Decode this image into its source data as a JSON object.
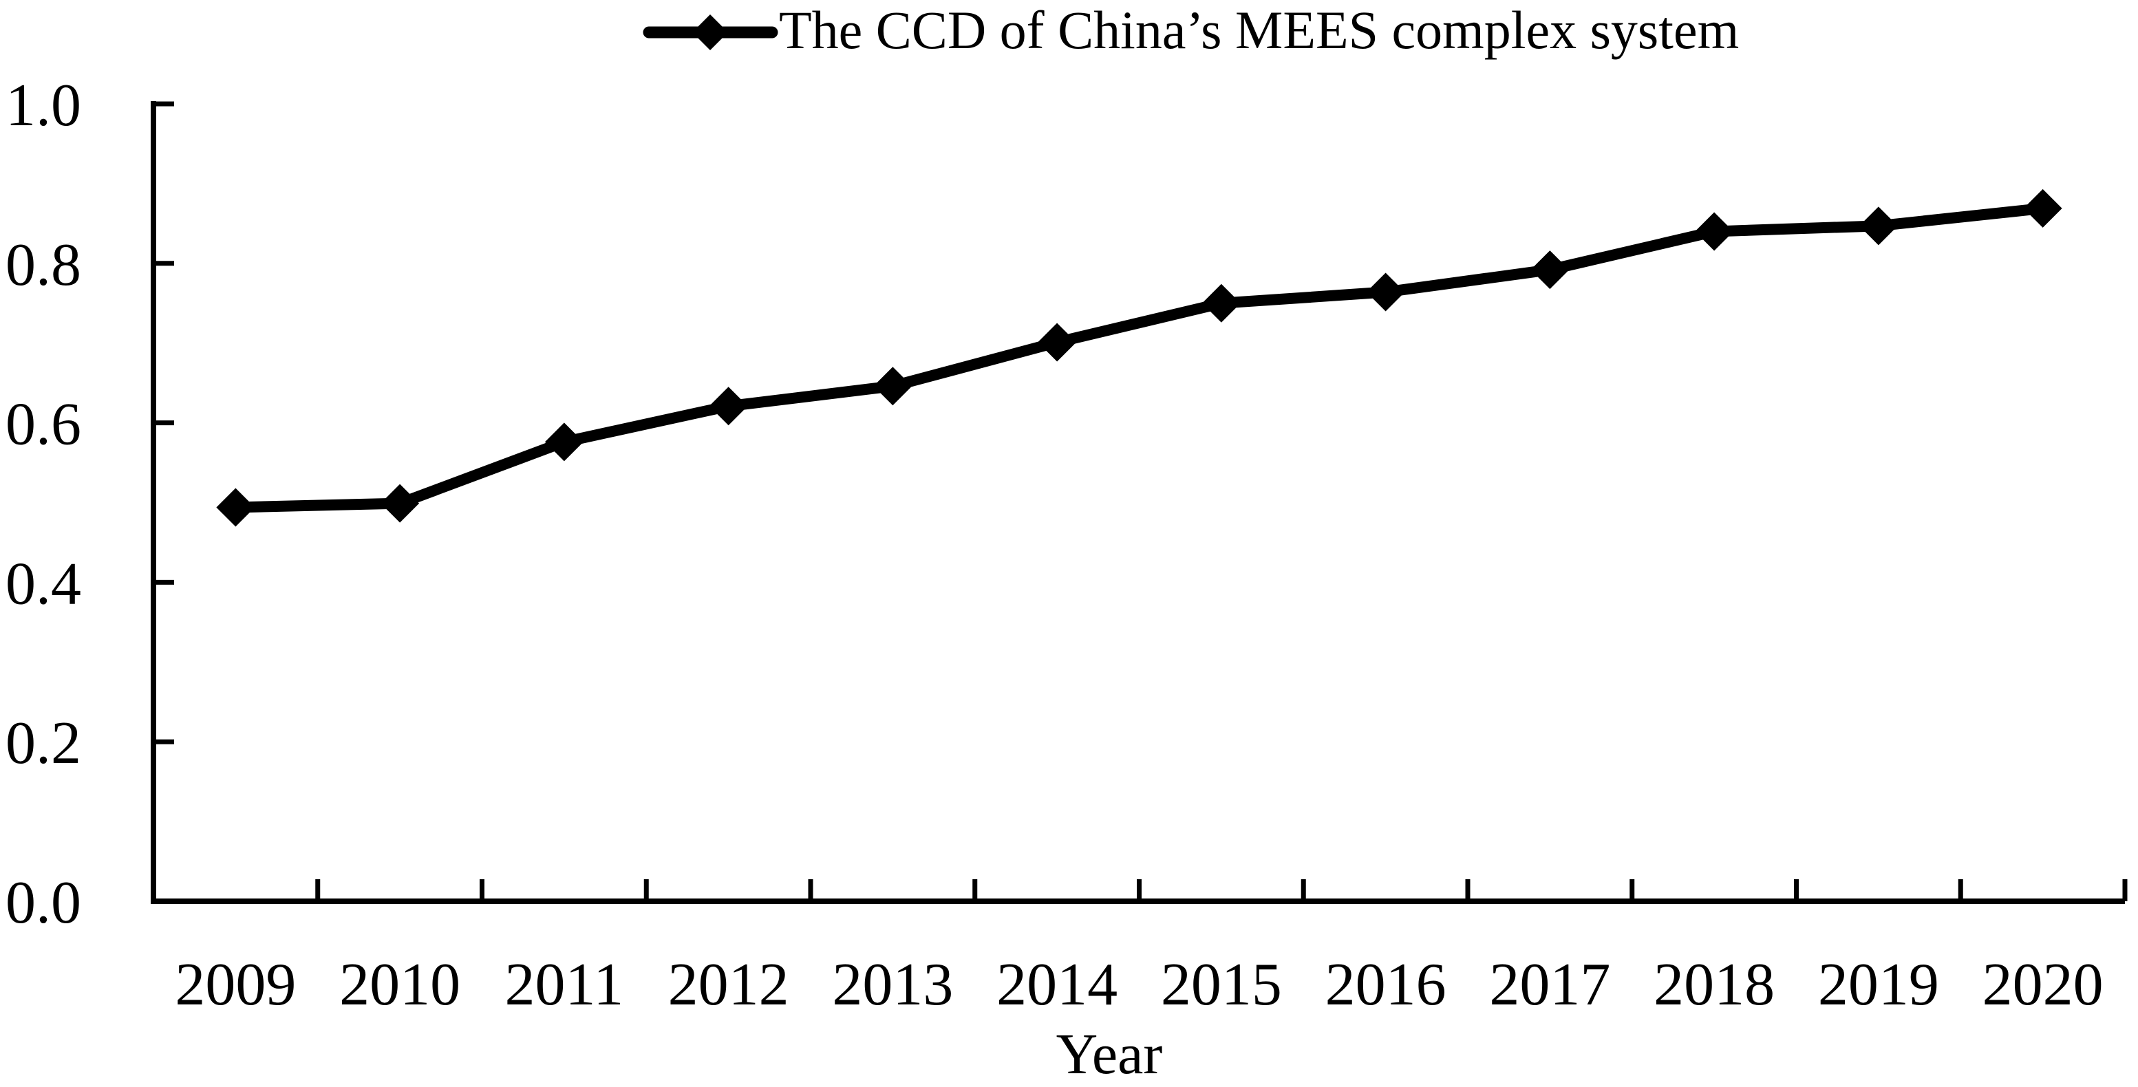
{
  "legend": {
    "label": "The CCD of China’s MEES complex system",
    "marker": "diamond-icon",
    "line_color": "#000000"
  },
  "x_axis": {
    "title": "Year"
  },
  "chart_data": {
    "type": "line",
    "title": "",
    "xlabel": "Year",
    "ylabel": "",
    "categories": [
      "2009",
      "2010",
      "2011",
      "2012",
      "2013",
      "2014",
      "2015",
      "2016",
      "2017",
      "2018",
      "2019",
      "2020"
    ],
    "series": [
      {
        "name": "The CCD of China’s MEES complex system",
        "values": [
          0.494,
          0.499,
          0.576,
          0.621,
          0.646,
          0.701,
          0.75,
          0.764,
          0.792,
          0.84,
          0.847,
          0.869
        ]
      }
    ],
    "ylim": [
      0.0,
      1.0
    ],
    "yticks": [
      0.0,
      0.2,
      0.4,
      0.6,
      0.8,
      1.0
    ],
    "ytick_labels": [
      "0.0",
      "0.2",
      "0.4",
      "0.6",
      "0.8",
      "1.0"
    ],
    "grid": false,
    "legend_position": "top-center",
    "marker_shape": "diamond",
    "line_color": "#000000",
    "background_color": "#ffffff"
  }
}
